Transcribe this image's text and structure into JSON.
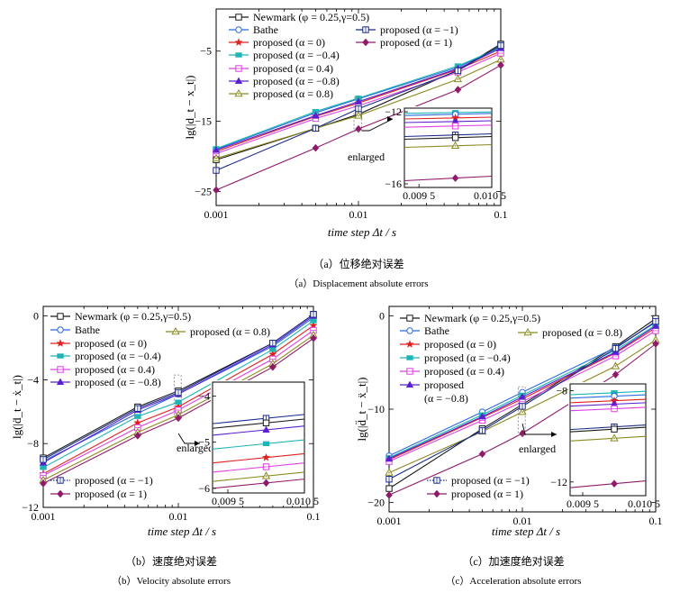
{
  "colors": {
    "newmark": "#1a1a1a",
    "bathe": "#2b6ae0",
    "p0": "#e02020",
    "pm04": "#1fb5b5",
    "p04": "#e040e0",
    "pm08": "#5a20d0",
    "p08": "#8a8a20",
    "pm1": "#1a2a8a",
    "p1": "#901a6a"
  },
  "series_labels": [
    "Newmark (φ = 0.25,γ=0.5)",
    "Bathe",
    "proposed (α = 0)",
    "proposed (α = −0.4)",
    "proposed (α = 0.4)",
    "proposed (α = −0.8)",
    "proposed (α = 0.8)",
    "proposed (α = −1)",
    "proposed (α = 1)"
  ],
  "legend_c_split": [
    "proposed",
    "(α = −0.8)"
  ],
  "enlarged_label": "enlarged",
  "chart_data": [
    {
      "type": "line",
      "panel": "a",
      "xlabel": "time step Δt / s",
      "ylabel": "lg(|d_t − x_t|)",
      "xscale": "log",
      "xlim": [
        0.001,
        0.1
      ],
      "ylim": [
        -27,
        1
      ],
      "yticks": [
        -5,
        -15,
        -25
      ],
      "xtick_labels": [
        "0.001",
        "0.01",
        "0.1"
      ],
      "x": [
        0.001,
        0.005,
        0.01,
        0.05,
        0.1
      ],
      "series": [
        {
          "values": [
            -20.5,
            -16.0,
            -14.0,
            -7.7,
            -4.0
          ]
        },
        {
          "values": [
            -19.0,
            -13.8,
            -11.8,
            -7.3,
            -4.4
          ]
        },
        {
          "values": [
            -19.3,
            -14.3,
            -12.4,
            -7.6,
            -5.0
          ]
        },
        {
          "values": [
            -18.9,
            -13.6,
            -11.7,
            -7.1,
            -4.5
          ]
        },
        {
          "values": [
            -19.6,
            -14.6,
            -12.8,
            -8.0,
            -5.3
          ]
        },
        {
          "values": [
            -19.1,
            -14.2,
            -12.2,
            -7.5,
            -4.6
          ]
        },
        {
          "values": [
            -20.3,
            -16.0,
            -14.2,
            -9.0,
            -6.2
          ]
        },
        {
          "values": [
            -22.0,
            -16.0,
            -13.2,
            -7.8,
            -4.2
          ]
        },
        {
          "values": [
            -24.8,
            -18.8,
            -16.1,
            -10.5,
            -7.0
          ]
        }
      ],
      "inset": {
        "xlim": [
          0.0093,
          0.0105
        ],
        "ylim": [
          -16.2,
          -11.8
        ],
        "yticks": [
          -12,
          -16
        ],
        "xtick_labels": [
          "0.009 5",
          "0.010 5"
        ],
        "order": [
          3,
          1,
          2,
          5,
          4,
          7,
          0,
          6,
          8
        ],
        "values": [
          -12.05,
          -12.15,
          -12.35,
          -12.55,
          -12.8,
          -13.3,
          -13.45,
          -13.9,
          -15.7
        ],
        "slopes": [
          0.08,
          0.12,
          0.1,
          0.1,
          0.12,
          0.15,
          0.15,
          0.15,
          0.25
        ]
      }
    },
    {
      "type": "line",
      "panel": "b",
      "xlabel": "time step Δt / s",
      "ylabel": "lg(|ḋ_t − ẋ_t|)",
      "xscale": "log",
      "xlim": [
        0.001,
        0.1
      ],
      "ylim": [
        -12,
        0.6
      ],
      "yticks": [
        0,
        -4,
        -8,
        -12
      ],
      "xtick_labels": [
        "0.001",
        "0.01",
        "0.1"
      ],
      "x": [
        0.001,
        0.005,
        0.01,
        0.05,
        0.1
      ],
      "series": [
        {
          "values": [
            -8.9,
            -5.7,
            -4.7,
            -1.7,
            0.1
          ]
        },
        {
          "values": [
            -9.1,
            -6.1,
            -4.9,
            -1.9,
            -0.1
          ]
        },
        {
          "values": [
            -9.9,
            -6.7,
            -5.7,
            -2.4,
            -0.6
          ]
        },
        {
          "values": [
            -9.5,
            -6.3,
            -5.4,
            -2.1,
            -0.3
          ]
        },
        {
          "values": [
            -10.0,
            -7.0,
            -5.9,
            -2.7,
            -0.9
          ]
        },
        {
          "values": [
            -9.2,
            -5.9,
            -4.9,
            -1.8,
            0.0
          ]
        },
        {
          "values": [
            -10.3,
            -7.3,
            -6.2,
            -3.0,
            -1.2
          ]
        },
        {
          "values": [
            -9.0,
            -5.8,
            -4.8,
            -1.7,
            0.1
          ]
        },
        {
          "values": [
            -10.5,
            -7.5,
            -6.4,
            -3.2,
            -1.4
          ]
        }
      ],
      "inset": {
        "xlim": [
          0.0093,
          0.0105
        ],
        "ylim": [
          -6.1,
          -3.7
        ],
        "yticks": [
          -4,
          -5,
          -6
        ],
        "xtick_labels": [
          "0.009 5",
          "0.010 5"
        ],
        "order": [
          7,
          0,
          5,
          3,
          2,
          4,
          6,
          8
        ],
        "values": [
          -4.5,
          -4.6,
          -4.75,
          -5.05,
          -5.35,
          -5.55,
          -5.75,
          -5.9
        ],
        "slopes": [
          0.2,
          0.2,
          0.2,
          0.2,
          0.2,
          0.2,
          0.2,
          0.2
        ]
      }
    },
    {
      "type": "line",
      "panel": "c",
      "xlabel": "time step Δt / s",
      "ylabel": "lg(|d̈_t − ẍ_t|)",
      "xscale": "log",
      "xlim": [
        0.001,
        0.1
      ],
      "ylim": [
        -21,
        1
      ],
      "yticks": [
        0,
        -10,
        -20
      ],
      "xtick_labels": [
        "0.001",
        "0.01",
        "0.1"
      ],
      "x": [
        0.001,
        0.005,
        0.01,
        0.05,
        0.1
      ],
      "series": [
        {
          "values": [
            -18.5,
            -12.1,
            -9.5,
            -3.3,
            -0.3
          ]
        },
        {
          "values": [
            -15.0,
            -10.3,
            -8.2,
            -3.4,
            -0.7
          ]
        },
        {
          "values": [
            -15.4,
            -10.9,
            -8.9,
            -4.0,
            -1.3
          ]
        },
        {
          "values": [
            -15.2,
            -10.6,
            -8.5,
            -3.7,
            -1.0
          ]
        },
        {
          "values": [
            -15.6,
            -11.2,
            -9.2,
            -4.3,
            -1.6
          ]
        },
        {
          "values": [
            -15.3,
            -10.8,
            -8.7,
            -3.9,
            -1.1
          ]
        },
        {
          "values": [
            -16.8,
            -12.4,
            -10.3,
            -5.4,
            -2.6
          ]
        },
        {
          "values": [
            -17.5,
            -12.3,
            -9.7,
            -3.5,
            -0.6
          ]
        },
        {
          "values": [
            -19.2,
            -14.8,
            -12.6,
            -6.3,
            -3.0
          ]
        }
      ],
      "inset": {
        "xlim": [
          0.0093,
          0.0105
        ],
        "ylim": [
          -12.6,
          -7.7
        ],
        "yticks": [
          -8,
          -12
        ],
        "xtick_labels": [
          "0.009 5",
          "0.010 5"
        ],
        "order": [
          3,
          1,
          2,
          5,
          4,
          7,
          0,
          6,
          8
        ],
        "values": [
          -8.1,
          -8.25,
          -8.45,
          -8.6,
          -8.8,
          -9.6,
          -9.7,
          -10.1,
          -12.1
        ],
        "slopes": [
          0.15,
          0.15,
          0.15,
          0.15,
          0.15,
          0.2,
          0.2,
          0.2,
          0.3
        ]
      }
    }
  ],
  "captions": {
    "a_cn": "（a）位移绝对误差",
    "a_en": "（a）Displacement absolute errors",
    "b_cn": "（b）速度绝对误差",
    "b_en": "（b）Velocity absolute errors",
    "c_cn": "（c）加速度绝对误差",
    "c_en": "（c）Acceleration absolute errors"
  }
}
